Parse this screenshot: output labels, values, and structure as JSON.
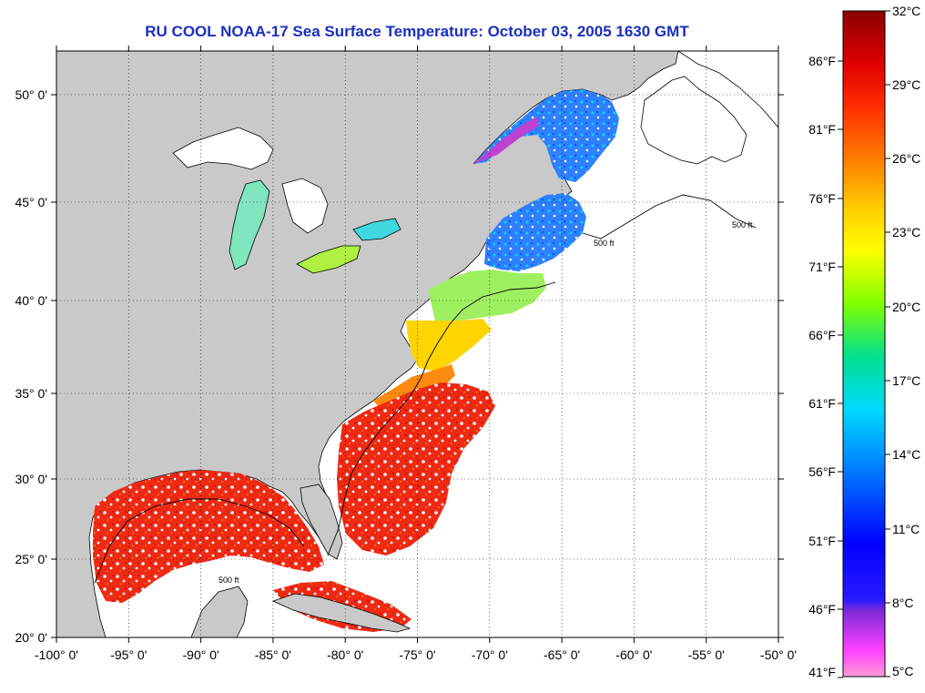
{
  "title": "RU COOL  NOAA-17  Sea Surface Temperature:  October 03, 2005 1630 GMT",
  "x_ticks": [
    "-100° 0'",
    "-95° 0'",
    "-90° 0'",
    "-85° 0'",
    "-80° 0'",
    "-75° 0'",
    "-70° 0'",
    "-65° 0'",
    "-60° 0'",
    "-55° 0'",
    "-50° 0'"
  ],
  "y_ticks": [
    "50° 0'",
    "45° 0'",
    "40° 0'",
    "35° 0'",
    "30° 0'",
    "25° 0'",
    "20° 0'"
  ],
  "colorbar": {
    "celsius_labels": [
      "32°C",
      "29°C",
      "26°C",
      "23°C",
      "20°C",
      "17°C",
      "14°C",
      "11°C",
      "8°C",
      "5°C"
    ],
    "fahrenheit_labels": [
      "86°F",
      "81°F",
      "76°F",
      "71°F",
      "66°F",
      "61°F",
      "56°F",
      "51°F",
      "46°F",
      "41°F"
    ],
    "colors_top_to_bottom": [
      "#8b0000",
      "#ff2000",
      "#ff7a00",
      "#ffd000",
      "#ffff00",
      "#80ff00",
      "#00e0a0",
      "#00d8ff",
      "#0070ff",
      "#0000ff",
      "#2a1aff",
      "#9a2acc",
      "#ff40ff",
      "#ff90d8"
    ]
  },
  "contour_label": "500 ft",
  "colors": {
    "land": "#c9c9c9",
    "ocean_nodata": "#ffffff",
    "title": "#1a2fbf"
  }
}
